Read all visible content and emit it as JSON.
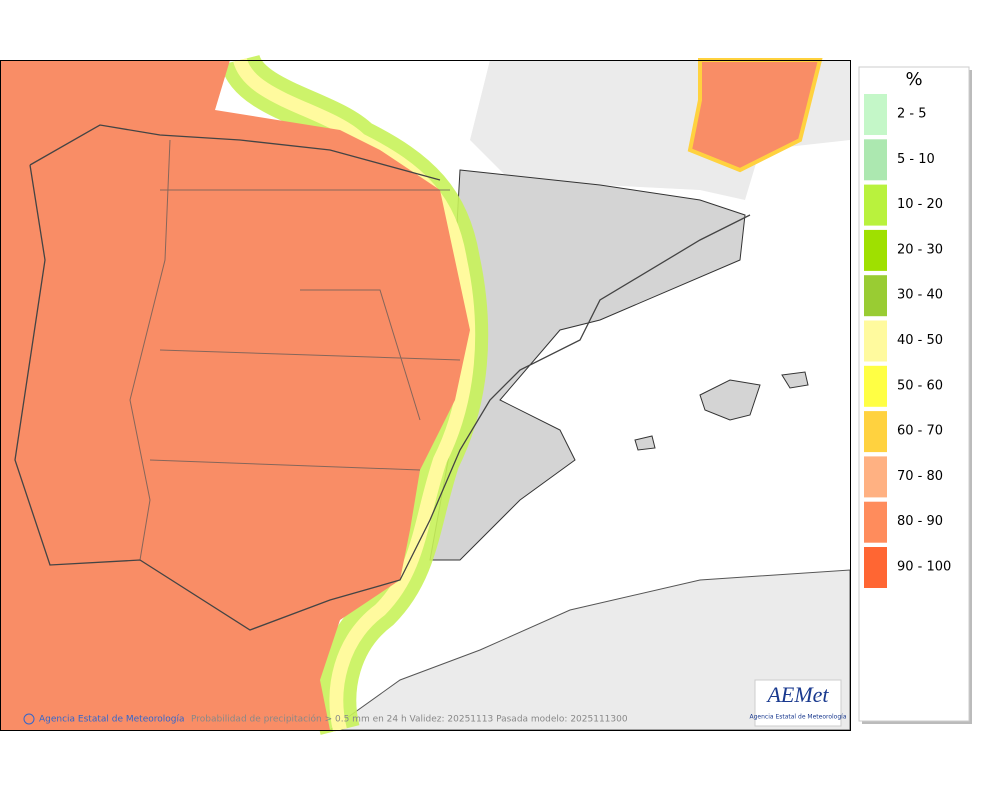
{
  "legend": {
    "title": "%",
    "items": [
      {
        "label": "2 - 5",
        "color": "#c4f7c8"
      },
      {
        "label": "5 - 10",
        "color": "#ace8b0"
      },
      {
        "label": "10 - 20",
        "color": "#b9f23d"
      },
      {
        "label": "20 - 30",
        "color": "#9fe000"
      },
      {
        "label": "30 - 40",
        "color": "#99cc33"
      },
      {
        "label": "40 - 50",
        "color": "#fffa9e"
      },
      {
        "label": "50 - 60",
        "color": "#ffff44"
      },
      {
        "label": "60 - 70",
        "color": "#ffd23f"
      },
      {
        "label": "70 - 80",
        "color": "#ffb182"
      },
      {
        "label": "80 - 90",
        "color": "#ff8c5c"
      },
      {
        "label": "90 - 100",
        "color": "#ff6633"
      }
    ]
  },
  "footer": {
    "credit": "Agencia Estatal de Meteorología",
    "caption": "Probabilidad de precipitación > 0.5 mm en 24 h Validez: 20251113 Pasada modelo: 2025111300"
  },
  "logo": {
    "name": "AEMet",
    "subtitle": "Agencia Estatal de Meteorología"
  }
}
